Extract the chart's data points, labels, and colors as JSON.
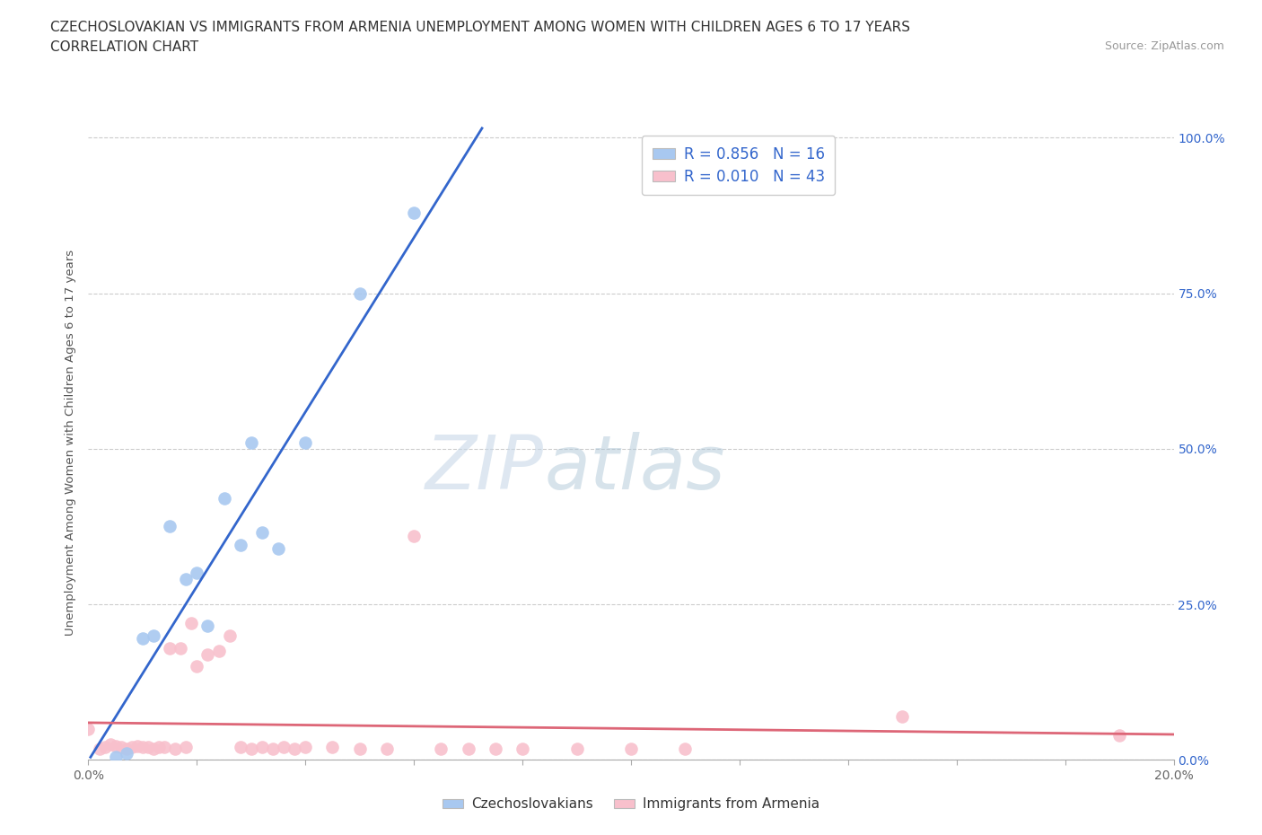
{
  "title_line1": "CZECHOSLOVAKIAN VS IMMIGRANTS FROM ARMENIA UNEMPLOYMENT AMONG WOMEN WITH CHILDREN AGES 6 TO 17 YEARS",
  "title_line2": "CORRELATION CHART",
  "source_text": "Source: ZipAtlas.com",
  "ylabel": "Unemployment Among Women with Children Ages 6 to 17 years",
  "watermark_zip": "ZIP",
  "watermark_atlas": "atlas",
  "czech_x": [
    0.005,
    0.007,
    0.01,
    0.012,
    0.015,
    0.018,
    0.02,
    0.022,
    0.025,
    0.028,
    0.03,
    0.032,
    0.035,
    0.04,
    0.05,
    0.06
  ],
  "czech_y": [
    0.005,
    0.01,
    0.195,
    0.2,
    0.375,
    0.29,
    0.3,
    0.215,
    0.42,
    0.345,
    0.51,
    0.365,
    0.34,
    0.51,
    0.75,
    0.88
  ],
  "armenia_x": [
    0.0,
    0.002,
    0.003,
    0.004,
    0.005,
    0.006,
    0.007,
    0.008,
    0.009,
    0.01,
    0.011,
    0.012,
    0.013,
    0.014,
    0.015,
    0.016,
    0.017,
    0.018,
    0.019,
    0.02,
    0.022,
    0.024,
    0.026,
    0.028,
    0.03,
    0.032,
    0.034,
    0.036,
    0.038,
    0.04,
    0.045,
    0.05,
    0.055,
    0.06,
    0.065,
    0.07,
    0.075,
    0.08,
    0.09,
    0.1,
    0.11,
    0.15,
    0.19
  ],
  "armenia_y": [
    0.05,
    0.018,
    0.02,
    0.025,
    0.022,
    0.02,
    0.018,
    0.02,
    0.022,
    0.02,
    0.02,
    0.018,
    0.02,
    0.02,
    0.18,
    0.018,
    0.18,
    0.02,
    0.22,
    0.15,
    0.17,
    0.175,
    0.2,
    0.02,
    0.018,
    0.02,
    0.018,
    0.02,
    0.018,
    0.02,
    0.02,
    0.018,
    0.018,
    0.36,
    0.018,
    0.018,
    0.018,
    0.018,
    0.018,
    0.018,
    0.018,
    0.07,
    0.04
  ],
  "czech_color": "#a8c8f0",
  "armenia_color": "#f8c0cc",
  "czech_line_color": "#3366cc",
  "armenia_line_color": "#dd6677",
  "r_czech": 0.856,
  "n_czech": 16,
  "r_armenia": 0.01,
  "n_armenia": 43,
  "xlim": [
    0.0,
    0.2
  ],
  "ylim": [
    0.0,
    1.02
  ],
  "yticks": [
    0.0,
    0.25,
    0.5,
    0.75,
    1.0
  ],
  "ytick_labels_left": [
    "0.0%",
    "25.0%",
    "50.0%",
    "75.0%",
    "100.0%"
  ],
  "ytick_labels_right": [
    "0.0%",
    "25.0%",
    "50.0%",
    "75.0%",
    "100.0%"
  ],
  "legend_label_czech": "Czechoslovakians",
  "legend_label_armenia": "Immigrants from Armenia",
  "bg_color": "#ffffff",
  "grid_color": "#cccccc"
}
